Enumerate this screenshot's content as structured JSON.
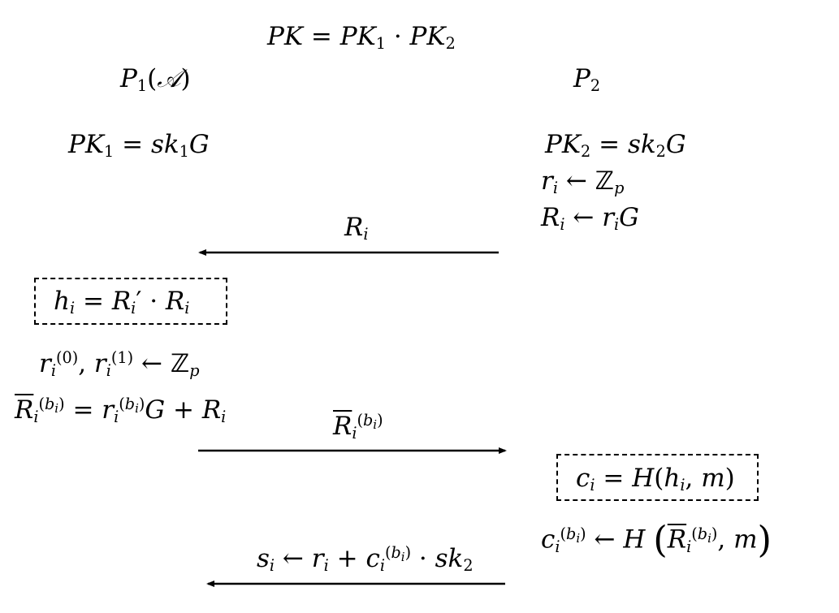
{
  "labels": {
    "pk": "PK",
    "pk1": "PK",
    "pk2": "PK",
    "p1": "P",
    "p1_sub": "1",
    "calA": "𝒜",
    "p2": "P",
    "p2_sub": "2",
    "sk": "sk",
    "G": "G",
    "r": "r",
    "R": "R",
    "h": "h",
    "c": "c",
    "s": "s",
    "H": "H",
    "m": "m",
    "Zp_Z": "ℤ",
    "Zp_p": "p",
    "i": "i",
    "b": "b",
    "one": "1",
    "two": "2",
    "zero": "0",
    "prime": "′"
  },
  "arrows": [
    {
      "id": "arrow-Ri",
      "direction": "left",
      "label": "R_i"
    },
    {
      "id": "arrow-Rbar",
      "direction": "right",
      "label": "R̄_i^(b_i)"
    },
    {
      "id": "arrow-si",
      "direction": "left",
      "label": "s_i ← r_i + c_i^(b_i) · sk_2"
    }
  ]
}
